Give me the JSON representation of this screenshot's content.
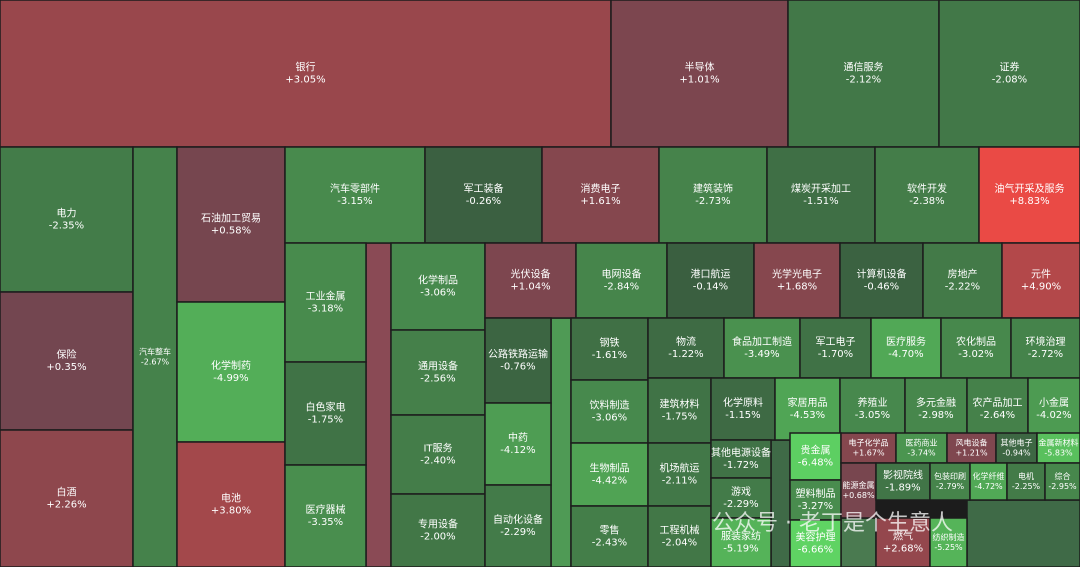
{
  "chart_data": {
    "type": "treemap",
    "categories": [
      "银行",
      "半导体",
      "通信服务",
      "证券",
      "电力",
      "保险",
      "白酒",
      "汽车整车",
      "石油加工贸易",
      "化学制药",
      "电池",
      "汽车零部件",
      "工业金属",
      "白色家电",
      "医疗器械",
      "军工装备",
      "消费电子",
      "建筑装饰",
      "煤炭开采加工",
      "软件开发",
      "油气开采及服务",
      "化学制品",
      "通用设备",
      "IT服务",
      "专用设备",
      "光伏设备",
      "公路铁路运输",
      "中药",
      "自动化设备",
      "电网设备",
      "港口航运",
      "光学光电子",
      "计算机设备",
      "房地产",
      "元件",
      "钢铁",
      "物流",
      "食品加工制造",
      "军工电子",
      "医疗服务",
      "农化制品",
      "环境治理",
      "饮料制造",
      "生物制品",
      "零售",
      "建筑材料",
      "机场航运",
      "工程机械",
      "化学原料",
      "家居用品",
      "养殖业",
      "多元金融",
      "农产品加工",
      "小金属",
      "其他电源设备",
      "游戏",
      "服装家纺",
      "贵金属",
      "塑料制品",
      "美容护理",
      "电子化学品",
      "医药商业",
      "风电设备",
      "其他电子",
      "金属新材料",
      "能源金属",
      "影视院线",
      "包装印刷",
      "化学纤维",
      "电机",
      "综合",
      "燃气",
      "纺织制造"
    ],
    "values": [
      3.05,
      1.01,
      -2.12,
      -2.08,
      -2.35,
      0.35,
      2.26,
      -2.67,
      0.58,
      -4.99,
      3.8,
      -3.15,
      -3.18,
      -1.75,
      -3.35,
      -0.26,
      1.61,
      -2.73,
      -1.51,
      -2.38,
      8.83,
      -3.06,
      -2.56,
      -2.4,
      -2.0,
      1.04,
      -0.76,
      -4.12,
      -2.29,
      -2.84,
      -0.14,
      1.68,
      -0.46,
      -2.22,
      4.9,
      -1.61,
      -1.22,
      -3.49,
      -1.7,
      -4.7,
      -3.02,
      -2.72,
      -3.06,
      -4.42,
      -2.43,
      -1.75,
      -2.11,
      -2.04,
      -1.15,
      -4.53,
      -3.05,
      -2.98,
      -2.64,
      -4.02,
      -1.72,
      -2.29,
      -5.19,
      -6.48,
      -3.27,
      -6.66,
      1.67,
      -3.74,
      1.21,
      -0.94,
      -5.83,
      0.68,
      -1.89,
      -2.79,
      -4.72,
      -2.25,
      -2.95,
      2.68,
      -5.25
    ],
    "value_labels": [
      "+3.05%",
      "+1.01%",
      "-2.12%",
      "-2.08%",
      "-2.35%",
      "+0.35%",
      "+2.26%",
      "-2.67%",
      "+0.58%",
      "-4.99%",
      "+3.80%",
      "-3.15%",
      "-3.18%",
      "-1.75%",
      "-3.35%",
      "-0.26%",
      "+1.61%",
      "-2.73%",
      "-1.51%",
      "-2.38%",
      "+8.83%",
      "-3.06%",
      "-2.56%",
      "-2.40%",
      "-2.00%",
      "+1.04%",
      "-0.76%",
      "-4.12%",
      "-2.29%",
      "-2.84%",
      "-0.14%",
      "+1.68%",
      "-0.46%",
      "-2.22%",
      "+4.90%",
      "-1.61%",
      "-1.22%",
      "-3.49%",
      "-1.70%",
      "-4.70%",
      "-3.02%",
      "-2.72%",
      "-3.06%",
      "-4.42%",
      "-2.43%",
      "-1.75%",
      "-2.11%",
      "-2.04%",
      "-1.15%",
      "-4.53%",
      "-3.05%",
      "-2.98%",
      "-2.64%",
      "-4.02%",
      "-1.72%",
      "-2.29%",
      "-5.19%",
      "-6.48%",
      "-3.27%",
      "-6.66%",
      "+1.67%",
      "-3.74%",
      "+1.21%",
      "-0.94%",
      "-5.83%",
      "+0.68%",
      "-1.89%",
      "-2.79%",
      "-4.72%",
      "-2.25%",
      "-2.95%",
      "+2.68%",
      "-5.25%"
    ],
    "watermark": "公众号 · 老丁是个生意人"
  }
}
